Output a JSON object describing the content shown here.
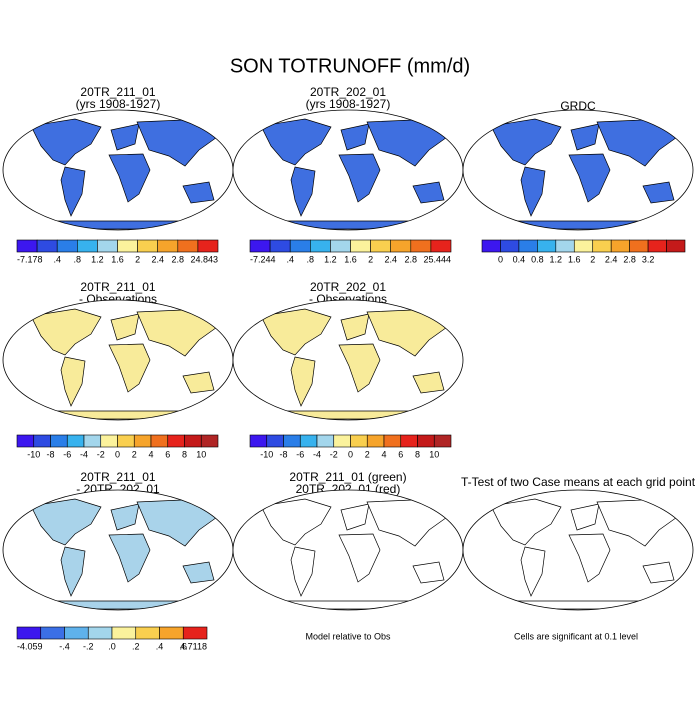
{
  "title": "SON TOTRUNOFF (mm/d)",
  "panels": [
    {
      "title": [
        "20TR_211_01",
        "(yrs 1908-1927)"
      ],
      "land": "#3f6fe0"
    },
    {
      "title": [
        "20TR_202_01",
        "(yrs 1908-1927)"
      ],
      "land": "#3f6fe0"
    },
    {
      "title": [
        "GRDC"
      ],
      "land": "#3f6fe0"
    },
    {
      "title": [
        "20TR_211_01",
        "- Observations"
      ],
      "land": "#f8eb9a"
    },
    {
      "title": [
        "20TR_202_01",
        "- Observations"
      ],
      "land": "#f8eb9a"
    },
    {
      "title": [
        "20TR_211_01",
        "- 20TR_202_01"
      ],
      "land": "#a9d3ea"
    },
    {
      "title": [
        "20TR_211_01 (green)",
        "20TR_202_01 (red)"
      ],
      "land": "#ffffff"
    },
    {
      "title": [
        "T-Test of two Case means at each grid point"
      ],
      "land": "#ffffff"
    }
  ],
  "colorbars": [
    {
      "colors": [
        "#3c17ef",
        "#2e4be2",
        "#2a7ee8",
        "#37b2ee",
        "#a3d6ec",
        "#fbf29c",
        "#f9cf4f",
        "#f6a42b",
        "#f0701e",
        "#e6231c"
      ],
      "labels": [
        "-7.178",
        ".4",
        ".8",
        "1.2",
        "1.6",
        "2",
        "2.4",
        "2.8",
        "24.843"
      ]
    },
    {
      "colors": [
        "#3c17ef",
        "#2e4be2",
        "#2a7ee8",
        "#37b2ee",
        "#a3d6ec",
        "#fbf29c",
        "#f9cf4f",
        "#f6a42b",
        "#f0701e",
        "#e6231c"
      ],
      "labels": [
        "-7.244",
        ".4",
        ".8",
        "1.2",
        "1.6",
        "2",
        "2.4",
        "2.8",
        "25.444"
      ]
    },
    {
      "colors": [
        "#3c17ef",
        "#2e4be2",
        "#2a7ee8",
        "#37b2ee",
        "#a3d6ec",
        "#fbf29c",
        "#f9cf4f",
        "#f6a42b",
        "#f0701e",
        "#e6231c",
        "#c41a1a"
      ],
      "labels": [
        "0",
        "0.4",
        "0.8",
        "1.2",
        "1.6",
        "2",
        "2.4",
        "2.8",
        "3.2"
      ]
    },
    {
      "colors": [
        "#3c17ef",
        "#2e4be2",
        "#2a7ee8",
        "#37b2ee",
        "#a3d6ec",
        "#fbf29c",
        "#f9cf4f",
        "#f6a42b",
        "#f0701e",
        "#e6231c",
        "#c41a1a",
        "#b02525"
      ],
      "labels": [
        "-10",
        "-8",
        "-6",
        "-4",
        "-2",
        "0",
        "2",
        "4",
        "6",
        "8",
        "10"
      ]
    },
    {
      "colors": [
        "#3c17ef",
        "#2e4be2",
        "#2a7ee8",
        "#37b2ee",
        "#a3d6ec",
        "#fbf29c",
        "#f9cf4f",
        "#f6a42b",
        "#f0701e",
        "#e6231c",
        "#c41a1a",
        "#b02525"
      ],
      "labels": [
        "-10",
        "-8",
        "-6",
        "-4",
        "-2",
        "0",
        "2",
        "4",
        "6",
        "8",
        "10"
      ]
    },
    {
      "colors": [
        "#3c17ef",
        "#3b6fe6",
        "#5fb2ec",
        "#a3d6ec",
        "#fbf29c",
        "#f9cf4f",
        "#f6a42b",
        "#e6231c"
      ],
      "labels": [
        "-4.059",
        "-.4",
        "-.2",
        ".0",
        ".2",
        ".4",
        ".6",
        "4.7118"
      ]
    }
  ],
  "notes": [
    "Model relative to Obs",
    "Cells are significant at 0.1 level"
  ]
}
